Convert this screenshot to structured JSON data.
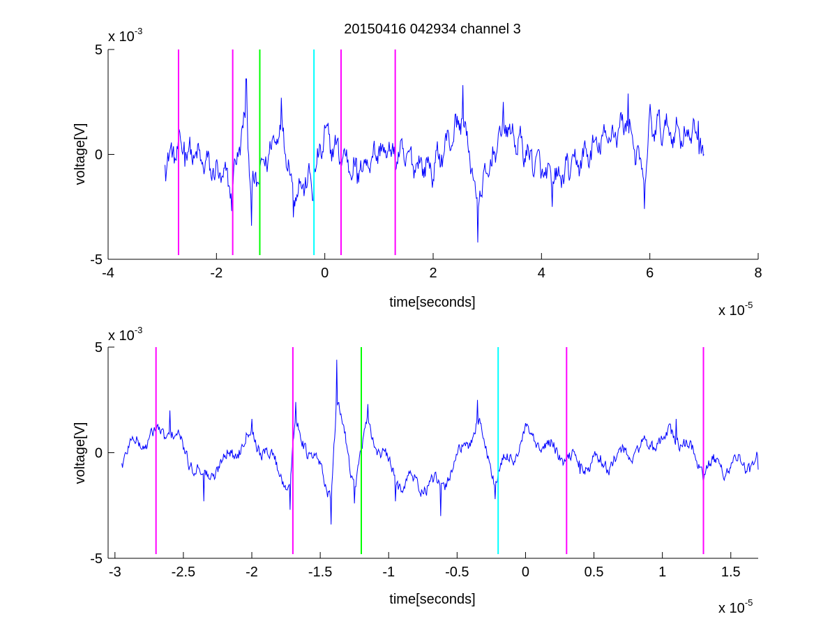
{
  "chart_data": [
    {
      "type": "line",
      "title": "20150416 042934 channel 3",
      "xlabel": "time[seconds]",
      "ylabel": "voltage[V]",
      "x_multiplier": "x 10",
      "x_exponent": "-5",
      "y_multiplier": "x 10",
      "y_exponent": "-3",
      "xlim": [
        -4,
        8
      ],
      "ylim": [
        -5,
        5
      ],
      "xticks": [
        -4,
        -2,
        0,
        2,
        4,
        6,
        8
      ],
      "xtick_labels": [
        "-4",
        "-2",
        "0",
        "2",
        "4",
        "6",
        "8"
      ],
      "yticks": [
        -5,
        0,
        5
      ],
      "ytick_labels": [
        "-5",
        "0",
        "5"
      ],
      "grid": false,
      "signal": {
        "color": "#0000ff",
        "x_range": [
          -2.95,
          7.0
        ],
        "samples": 760,
        "keypoints": [
          [
            -2.95,
            -0.5
          ],
          [
            -2.6,
            0.6
          ],
          [
            -1.72,
            -2.7
          ],
          [
            -1.45,
            3.6
          ],
          [
            -1.35,
            -3.4
          ],
          [
            -0.8,
            2.7
          ],
          [
            -0.58,
            -3.0
          ],
          [
            -0.22,
            -2.2
          ],
          [
            0.0,
            1.4
          ],
          [
            0.6,
            -1.4
          ],
          [
            1.0,
            0.4
          ],
          [
            2.0,
            -1.2
          ],
          [
            2.55,
            3.3
          ],
          [
            2.82,
            -4.2
          ],
          [
            3.3,
            2.5
          ],
          [
            4.2,
            -2.5
          ],
          [
            5.6,
            2.9
          ],
          [
            5.9,
            -2.6
          ],
          [
            6.0,
            2.4
          ],
          [
            6.9,
            1.6
          ],
          [
            7.0,
            0.0
          ]
        ]
      },
      "markers": [
        {
          "x": -2.7,
          "color": "#ff00ff"
        },
        {
          "x": -1.7,
          "color": "#ff00ff"
        },
        {
          "x": -1.2,
          "color": "#00ff00"
        },
        {
          "x": -0.2,
          "color": "#00ffff"
        },
        {
          "x": 0.3,
          "color": "#ff00ff"
        },
        {
          "x": 1.3,
          "color": "#ff00ff"
        }
      ],
      "marker_range": [
        -4.8,
        5.0
      ]
    },
    {
      "type": "line",
      "title": "",
      "xlabel": "time[seconds]",
      "ylabel": "voltage[V]",
      "x_multiplier": "x 10",
      "x_exponent": "-5",
      "y_multiplier": "x 10",
      "y_exponent": "-3",
      "xlim": [
        -3.05,
        1.7
      ],
      "ylim": [
        -5,
        5
      ],
      "xticks": [
        -3,
        -2.5,
        -2,
        -1.5,
        -1,
        -0.5,
        0,
        0.5,
        1,
        1.5
      ],
      "xtick_labels": [
        "-3",
        "-2.5",
        "-2",
        "-1.5",
        "-1",
        "-0.5",
        "0",
        "0.5",
        "1",
        "1.5"
      ],
      "yticks": [
        -5,
        0,
        5
      ],
      "ytick_labels": [
        "-5",
        "0",
        "5"
      ],
      "grid": false,
      "signal": {
        "color": "#0000ff",
        "x_range": [
          -2.95,
          1.7
        ],
        "samples": 900,
        "keypoints": [
          [
            -2.95,
            -0.5
          ],
          [
            -2.88,
            0.6
          ],
          [
            -2.6,
            2.0
          ],
          [
            -2.35,
            -2.3
          ],
          [
            -2.0,
            1.6
          ],
          [
            -1.72,
            -2.7
          ],
          [
            -1.68,
            2.4
          ],
          [
            -1.42,
            -3.4
          ],
          [
            -1.38,
            4.4
          ],
          [
            -1.25,
            -2.4
          ],
          [
            -1.15,
            2.3
          ],
          [
            -0.95,
            -2.3
          ],
          [
            -0.62,
            -3.0
          ],
          [
            -0.35,
            2.5
          ],
          [
            -0.22,
            -2.2
          ],
          [
            0.0,
            1.4
          ],
          [
            0.4,
            -1.0
          ],
          [
            0.6,
            -0.8
          ],
          [
            1.1,
            1.6
          ],
          [
            1.3,
            -1.3
          ],
          [
            1.7,
            -0.8
          ]
        ]
      },
      "markers": [
        {
          "x": -2.7,
          "color": "#ff00ff"
        },
        {
          "x": -1.7,
          "color": "#ff00ff"
        },
        {
          "x": -1.2,
          "color": "#00ff00"
        },
        {
          "x": -0.2,
          "color": "#00ffff"
        },
        {
          "x": 0.3,
          "color": "#ff00ff"
        },
        {
          "x": 1.3,
          "color": "#ff00ff"
        }
      ],
      "marker_range": [
        -4.8,
        5.0
      ]
    }
  ]
}
